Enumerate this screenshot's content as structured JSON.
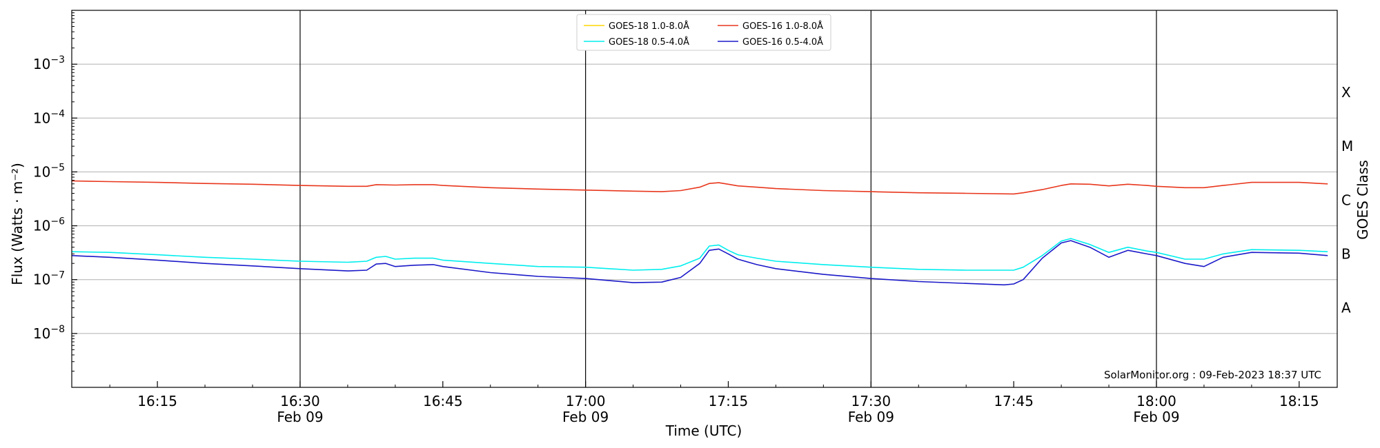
{
  "chart_data": {
    "type": "line",
    "ylabel": "Flux (Watts · m⁻²)",
    "xlabel": "Time (UTC)",
    "right_axis_label": "GOES Class",
    "annotation": "SolarMonitor.org : 09-Feb-2023 18:37 UTC",
    "y_scale": "log",
    "ylim": [
      1e-09,
      0.01
    ],
    "xlim": [
      "16:06",
      "18:19"
    ],
    "y_ticks": [
      {
        "value": 1e-08,
        "base": "10",
        "exp": "−8"
      },
      {
        "value": 1e-07,
        "base": "10",
        "exp": "−7"
      },
      {
        "value": 1e-06,
        "base": "10",
        "exp": "−6"
      },
      {
        "value": 1e-05,
        "base": "10",
        "exp": "−5"
      },
      {
        "value": 0.0001,
        "base": "10",
        "exp": "−4"
      },
      {
        "value": 0.001,
        "base": "10",
        "exp": "−3"
      }
    ],
    "x_ticks": [
      {
        "time": "16:15",
        "label": "16:15",
        "date": ""
      },
      {
        "time": "16:30",
        "label": "16:30",
        "date": "Feb 09"
      },
      {
        "time": "16:45",
        "label": "16:45",
        "date": ""
      },
      {
        "time": "17:00",
        "label": "17:00",
        "date": "Feb 09"
      },
      {
        "time": "17:15",
        "label": "17:15",
        "date": ""
      },
      {
        "time": "17:30",
        "label": "17:30",
        "date": "Feb 09"
      },
      {
        "time": "17:45",
        "label": "17:45",
        "date": ""
      },
      {
        "time": "18:00",
        "label": "18:00",
        "date": "Feb 09"
      },
      {
        "time": "18:15",
        "label": "18:15",
        "date": ""
      }
    ],
    "vertical_lines": [
      "16:30",
      "17:00",
      "17:30",
      "18:00"
    ],
    "goes_classes": [
      {
        "label": "A",
        "value": 3e-08
      },
      {
        "label": "B",
        "value": 3e-07
      },
      {
        "label": "C",
        "value": 3e-06
      },
      {
        "label": "M",
        "value": 3e-05
      },
      {
        "label": "X",
        "value": 0.0003
      }
    ],
    "grid": "horizontal",
    "legend_position": "top-center",
    "series": [
      {
        "name": "GOES-18 1.0-8.0Å",
        "color": "#ffd700",
        "x": [],
        "y": []
      },
      {
        "name": "GOES-16 1.0-8.0Å",
        "color": "#e8361c",
        "x": [
          "16:06",
          "16:10",
          "16:15",
          "16:20",
          "16:25",
          "16:30",
          "16:35",
          "16:37",
          "16:38",
          "16:40",
          "16:42",
          "16:44",
          "16:45",
          "16:50",
          "16:55",
          "17:00",
          "17:05",
          "17:08",
          "17:10",
          "17:12",
          "17:13",
          "17:14",
          "17:15",
          "17:16",
          "17:18",
          "17:20",
          "17:25",
          "17:30",
          "17:35",
          "17:40",
          "17:45",
          "17:46",
          "17:48",
          "17:50",
          "17:51",
          "17:53",
          "17:55",
          "17:57",
          "17:59",
          "18:00",
          "18:03",
          "18:05",
          "18:07",
          "18:10",
          "18:15",
          "18:18"
        ],
        "y": [
          6.8e-06,
          6.6e-06,
          6.4e-06,
          6.1e-06,
          5.9e-06,
          5.6e-06,
          5.4e-06,
          5.4e-06,
          5.8e-06,
          5.7e-06,
          5.8e-06,
          5.8e-06,
          5.6e-06,
          5.1e-06,
          4.8e-06,
          4.6e-06,
          4.4e-06,
          4.3e-06,
          4.5e-06,
          5.2e-06,
          6.1e-06,
          6.3e-06,
          5.9e-06,
          5.5e-06,
          5.2e-06,
          4.9e-06,
          4.5e-06,
          4.3e-06,
          4.1e-06,
          4e-06,
          3.9e-06,
          4.1e-06,
          4.7e-06,
          5.6e-06,
          6e-06,
          5.9e-06,
          5.5e-06,
          5.9e-06,
          5.6e-06,
          5.4e-06,
          5.1e-06,
          5.1e-06,
          5.6e-06,
          6.4e-06,
          6.4e-06,
          6e-06
        ]
      },
      {
        "name": "GOES-18 0.5-4.0Å",
        "color": "#00eeee",
        "x": [
          "16:06",
          "16:10",
          "16:15",
          "16:20",
          "16:25",
          "16:30",
          "16:35",
          "16:37",
          "16:38",
          "16:39",
          "16:40",
          "16:42",
          "16:44",
          "16:45",
          "16:50",
          "16:55",
          "17:00",
          "17:05",
          "17:08",
          "17:10",
          "17:12",
          "17:13",
          "17:14",
          "17:15",
          "17:16",
          "17:18",
          "17:20",
          "17:25",
          "17:30",
          "17:35",
          "17:40",
          "17:45",
          "17:46",
          "17:48",
          "17:50",
          "17:51",
          "17:53",
          "17:55",
          "17:57",
          "17:59",
          "18:00",
          "18:03",
          "18:05",
          "18:07",
          "18:10",
          "18:15",
          "18:18"
        ],
        "y": [
          3.3e-07,
          3.2e-07,
          2.9e-07,
          2.6e-07,
          2.4e-07,
          2.2e-07,
          2.1e-07,
          2.2e-07,
          2.6e-07,
          2.7e-07,
          2.4e-07,
          2.5e-07,
          2.5e-07,
          2.3e-07,
          2e-07,
          1.75e-07,
          1.7e-07,
          1.5e-07,
          1.55e-07,
          1.8e-07,
          2.5e-07,
          4.2e-07,
          4.4e-07,
          3.5e-07,
          2.9e-07,
          2.5e-07,
          2.2e-07,
          1.9e-07,
          1.7e-07,
          1.55e-07,
          1.5e-07,
          1.5e-07,
          1.7e-07,
          2.8e-07,
          5.2e-07,
          5.8e-07,
          4.5e-07,
          3.2e-07,
          4e-07,
          3.4e-07,
          3.2e-07,
          2.4e-07,
          2.4e-07,
          3e-07,
          3.6e-07,
          3.5e-07,
          3.3e-07
        ]
      },
      {
        "name": "GOES-16 0.5-4.0Å",
        "color": "#1a18c8",
        "x": [
          "16:06",
          "16:10",
          "16:15",
          "16:20",
          "16:25",
          "16:30",
          "16:35",
          "16:37",
          "16:38",
          "16:39",
          "16:40",
          "16:42",
          "16:44",
          "16:45",
          "16:50",
          "16:55",
          "17:00",
          "17:05",
          "17:08",
          "17:10",
          "17:12",
          "17:13",
          "17:14",
          "17:15",
          "17:16",
          "17:18",
          "17:20",
          "17:25",
          "17:30",
          "17:35",
          "17:40",
          "17:44",
          "17:45",
          "17:46",
          "17:48",
          "17:50",
          "17:51",
          "17:53",
          "17:55",
          "17:57",
          "17:59",
          "18:00",
          "18:03",
          "18:05",
          "18:07",
          "18:10",
          "18:15",
          "18:18"
        ],
        "y": [
          2.8e-07,
          2.6e-07,
          2.3e-07,
          2e-07,
          1.8e-07,
          1.6e-07,
          1.45e-07,
          1.5e-07,
          1.95e-07,
          2e-07,
          1.75e-07,
          1.85e-07,
          1.9e-07,
          1.75e-07,
          1.35e-07,
          1.15e-07,
          1.05e-07,
          8.8e-08,
          9e-08,
          1.1e-07,
          2e-07,
          3.5e-07,
          3.7e-07,
          3e-07,
          2.4e-07,
          1.9e-07,
          1.6e-07,
          1.25e-07,
          1.05e-07,
          9.2e-08,
          8.5e-08,
          8e-08,
          8.3e-08,
          1e-07,
          2.5e-07,
          4.8e-07,
          5.3e-07,
          4e-07,
          2.6e-07,
          3.5e-07,
          3e-07,
          2.8e-07,
          2e-07,
          1.75e-07,
          2.6e-07,
          3.2e-07,
          3.1e-07,
          2.8e-07
        ]
      }
    ]
  }
}
